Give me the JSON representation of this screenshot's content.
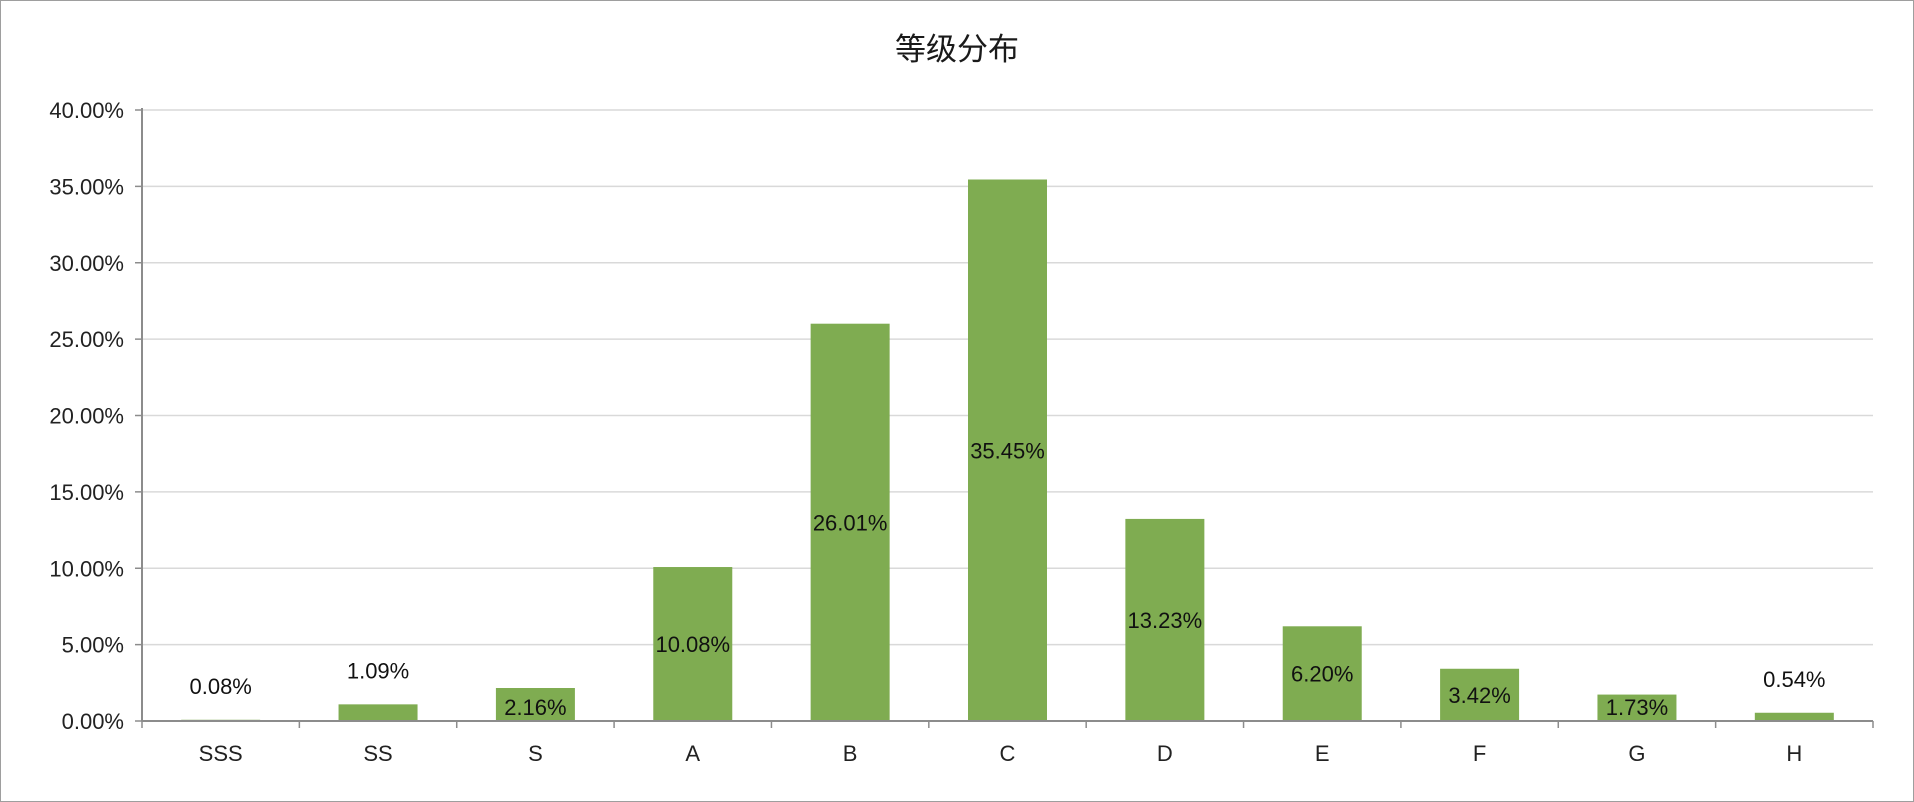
{
  "chart_data": {
    "type": "bar",
    "title": "等级分布",
    "categories": [
      "SSS",
      "SS",
      "S",
      "A",
      "B",
      "C",
      "D",
      "E",
      "F",
      "G",
      "H"
    ],
    "values": [
      0.08,
      1.09,
      2.16,
      10.08,
      26.01,
      35.45,
      13.23,
      6.2,
      3.42,
      1.73,
      0.54
    ],
    "data_labels": [
      "0.08%",
      "1.09%",
      "2.16%",
      "10.08%",
      "26.01%",
      "35.45%",
      "13.23%",
      "6.20%",
      "3.42%",
      "1.73%",
      "0.54%"
    ],
    "y_tick_labels": [
      "0.00%",
      "5.00%",
      "10.00%",
      "15.00%",
      "20.00%",
      "25.00%",
      "30.00%",
      "35.00%",
      "40.00%"
    ],
    "ylim": [
      0,
      40
    ],
    "y_unit": "%",
    "grid": true,
    "legend": "none",
    "bar_color": "#7fac51",
    "grid_color": "#d9d9d9",
    "axis_color": "#8c8c8c"
  }
}
